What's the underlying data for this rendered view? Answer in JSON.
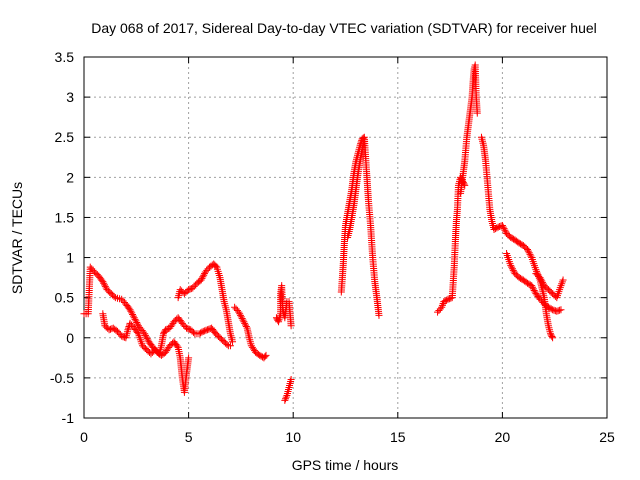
{
  "chart_data": {
    "type": "scatter",
    "title": "Day 068 of 2017, Sidereal Day-to-day VTEC variation (SDTVAR) for receiver huel",
    "xlabel": "GPS time / hours",
    "ylabel": "SDTVAR / TECUs",
    "xlim": [
      0,
      25
    ],
    "ylim": [
      -1,
      3.5
    ],
    "xticks": [
      0,
      5,
      10,
      15,
      20,
      25
    ],
    "yticks": [
      -1,
      -0.5,
      0,
      0.5,
      1,
      1.5,
      2,
      2.5,
      3,
      3.5
    ],
    "xtick_labels": [
      "0",
      "5",
      "10",
      "15",
      "20",
      "25"
    ],
    "ytick_labels": [
      "-1",
      "-0.5",
      "0",
      "0.5",
      "1",
      "1.5",
      "2",
      "2.5",
      "3",
      "3.5"
    ],
    "grid": true,
    "marker": "+",
    "series": [
      {
        "name": "SDTVAR",
        "color": "#ff0000",
        "segments": [
          [
            [
              0.0,
              0.3
            ],
            [
              0.2,
              0.3
            ],
            [
              0.3,
              0.88
            ],
            [
              0.5,
              0.82
            ],
            [
              0.7,
              0.77
            ],
            [
              0.9,
              0.7
            ],
            [
              1.1,
              0.6
            ],
            [
              1.3,
              0.55
            ],
            [
              1.5,
              0.5
            ],
            [
              1.8,
              0.48
            ],
            [
              2.0,
              0.42
            ],
            [
              2.2,
              0.35
            ],
            [
              2.4,
              0.25
            ],
            [
              2.6,
              0.15
            ],
            [
              2.9,
              0.05
            ],
            [
              3.1,
              -0.05
            ],
            [
              3.3,
              -0.12
            ],
            [
              3.5,
              -0.18
            ],
            [
              3.7,
              -0.22
            ],
            [
              3.9,
              -0.18
            ],
            [
              4.1,
              -0.1
            ],
            [
              4.3,
              -0.05
            ],
            [
              4.5,
              -0.12
            ],
            [
              4.6,
              -0.25
            ],
            [
              4.7,
              -0.5
            ],
            [
              4.8,
              -0.68
            ],
            [
              4.9,
              -0.45
            ],
            [
              5.0,
              -0.25
            ]
          ],
          [
            [
              0.9,
              0.3
            ],
            [
              1.0,
              0.15
            ],
            [
              1.2,
              0.1
            ],
            [
              1.4,
              0.12
            ],
            [
              1.6,
              0.08
            ],
            [
              1.8,
              0.02
            ],
            [
              2.0,
              0.0
            ],
            [
              2.1,
              0.1
            ],
            [
              2.2,
              0.18
            ],
            [
              2.4,
              0.12
            ],
            [
              2.6,
              0.05
            ],
            [
              2.8,
              -0.1
            ],
            [
              3.0,
              -0.15
            ],
            [
              3.2,
              -0.2
            ],
            [
              3.4,
              -0.15
            ],
            [
              3.6,
              -0.2
            ],
            [
              3.7,
              -0.1
            ],
            [
              3.8,
              0.05
            ],
            [
              3.9,
              0.1
            ],
            [
              4.1,
              0.12
            ],
            [
              4.3,
              0.2
            ],
            [
              4.5,
              0.25
            ],
            [
              4.7,
              0.18
            ],
            [
              4.9,
              0.12
            ],
            [
              5.1,
              0.1
            ],
            [
              5.3,
              0.05
            ],
            [
              5.5,
              0.05
            ],
            [
              5.7,
              0.08
            ],
            [
              5.9,
              0.1
            ],
            [
              6.1,
              0.12
            ],
            [
              6.3,
              0.05
            ],
            [
              6.5,
              0.0
            ],
            [
              6.7,
              -0.05
            ],
            [
              6.9,
              -0.1
            ],
            [
              7.0,
              -0.1
            ]
          ],
          [
            [
              4.5,
              0.5
            ],
            [
              4.6,
              0.6
            ],
            [
              4.8,
              0.55
            ],
            [
              5.0,
              0.6
            ],
            [
              5.2,
              0.62
            ],
            [
              5.4,
              0.68
            ],
            [
              5.6,
              0.72
            ],
            [
              5.8,
              0.82
            ],
            [
              6.0,
              0.88
            ],
            [
              6.2,
              0.92
            ],
            [
              6.35,
              0.88
            ],
            [
              6.5,
              0.75
            ],
            [
              6.6,
              0.6
            ],
            [
              6.7,
              0.45
            ],
            [
              6.8,
              0.35
            ],
            [
              6.9,
              0.2
            ],
            [
              7.0,
              0.05
            ],
            [
              7.1,
              -0.05
            ]
          ],
          [
            [
              7.2,
              0.38
            ],
            [
              7.4,
              0.32
            ],
            [
              7.6,
              0.22
            ],
            [
              7.8,
              0.12
            ],
            [
              7.9,
              0.0
            ],
            [
              8.0,
              -0.1
            ],
            [
              8.2,
              -0.18
            ],
            [
              8.4,
              -0.22
            ],
            [
              8.6,
              -0.25
            ],
            [
              8.7,
              -0.22
            ]
          ],
          [
            [
              9.2,
              0.25
            ],
            [
              9.3,
              0.2
            ],
            [
              9.4,
              0.3
            ],
            [
              9.4,
              0.55
            ],
            [
              9.45,
              0.65
            ],
            [
              9.5,
              0.35
            ],
            [
              9.6,
              0.25
            ],
            [
              9.7,
              0.45
            ],
            [
              9.8,
              0.45
            ],
            [
              9.85,
              0.3
            ],
            [
              9.9,
              0.15
            ]
          ],
          [
            [
              9.6,
              -0.78
            ],
            [
              9.7,
              -0.72
            ],
            [
              9.8,
              -0.62
            ],
            [
              9.9,
              -0.52
            ]
          ],
          [
            [
              12.3,
              0.57
            ],
            [
              12.35,
              0.75
            ],
            [
              12.4,
              0.95
            ],
            [
              12.45,
              1.2
            ],
            [
              12.5,
              1.4
            ],
            [
              12.6,
              1.55
            ],
            [
              12.7,
              1.7
            ],
            [
              12.8,
              1.85
            ],
            [
              12.9,
              2.05
            ],
            [
              13.0,
              2.2
            ],
            [
              13.1,
              2.3
            ],
            [
              13.2,
              2.4
            ],
            [
              13.3,
              2.48
            ],
            [
              13.4,
              2.5
            ],
            [
              13.5,
              2.1
            ],
            [
              13.55,
              1.9
            ],
            [
              13.6,
              1.7
            ],
            [
              13.7,
              1.4
            ],
            [
              13.8,
              1.0
            ],
            [
              13.9,
              0.7
            ],
            [
              14.0,
              0.5
            ],
            [
              14.1,
              0.28
            ]
          ],
          [
            [
              12.6,
              1.25
            ],
            [
              12.7,
              1.35
            ],
            [
              12.8,
              1.5
            ],
            [
              12.9,
              1.65
            ],
            [
              13.0,
              1.85
            ],
            [
              13.1,
              2.05
            ],
            [
              13.2,
              2.2
            ],
            [
              13.3,
              2.35
            ],
            [
              13.4,
              2.45
            ]
          ],
          [
            [
              16.9,
              0.32
            ],
            [
              17.1,
              0.38
            ],
            [
              17.2,
              0.45
            ],
            [
              17.4,
              0.48
            ],
            [
              17.6,
              0.5
            ],
            [
              17.7,
              0.9
            ],
            [
              17.75,
              1.2
            ],
            [
              17.8,
              1.45
            ],
            [
              17.85,
              1.6
            ],
            [
              17.9,
              1.9
            ],
            [
              18.0,
              2.0
            ],
            [
              18.1,
              1.95
            ],
            [
              18.2,
              1.9
            ]
          ],
          [
            [
              18.0,
              1.8
            ],
            [
              18.1,
              2.0
            ],
            [
              18.2,
              2.2
            ],
            [
              18.3,
              2.5
            ],
            [
              18.4,
              2.7
            ],
            [
              18.5,
              2.9
            ],
            [
              18.55,
              3.0
            ],
            [
              18.6,
              3.2
            ],
            [
              18.65,
              3.35
            ],
            [
              18.7,
              3.4
            ],
            [
              18.75,
              3.0
            ],
            [
              18.8,
              2.8
            ]
          ],
          [
            [
              19.0,
              2.5
            ],
            [
              19.1,
              2.4
            ],
            [
              19.2,
              2.2
            ],
            [
              19.3,
              1.9
            ],
            [
              19.4,
              1.6
            ],
            [
              19.5,
              1.45
            ],
            [
              19.6,
              1.35
            ],
            [
              19.8,
              1.38
            ],
            [
              20.0,
              1.4
            ],
            [
              20.2,
              1.3
            ],
            [
              20.4,
              1.25
            ],
            [
              20.6,
              1.22
            ],
            [
              20.8,
              1.18
            ],
            [
              21.0,
              1.15
            ],
            [
              21.2,
              1.1
            ],
            [
              21.4,
              1.0
            ],
            [
              21.6,
              0.85
            ],
            [
              21.8,
              0.72
            ],
            [
              22.0,
              0.5
            ],
            [
              22.1,
              0.3
            ],
            [
              22.2,
              0.15
            ],
            [
              22.3,
              0.05
            ],
            [
              22.4,
              0.0
            ]
          ],
          [
            [
              20.2,
              1.05
            ],
            [
              20.4,
              0.9
            ],
            [
              20.6,
              0.8
            ],
            [
              20.8,
              0.75
            ],
            [
              21.0,
              0.72
            ],
            [
              21.2,
              0.68
            ],
            [
              21.4,
              0.65
            ],
            [
              21.6,
              0.55
            ],
            [
              21.8,
              0.48
            ],
            [
              22.0,
              0.42
            ],
            [
              22.2,
              0.38
            ],
            [
              22.4,
              0.35
            ],
            [
              22.6,
              0.33
            ],
            [
              22.8,
              0.35
            ]
          ],
          [
            [
              21.6,
              0.8
            ],
            [
              21.8,
              0.75
            ],
            [
              22.0,
              0.65
            ],
            [
              22.2,
              0.6
            ],
            [
              22.4,
              0.55
            ],
            [
              22.6,
              0.5
            ],
            [
              22.8,
              0.65
            ],
            [
              22.9,
              0.72
            ]
          ]
        ]
      }
    ]
  }
}
